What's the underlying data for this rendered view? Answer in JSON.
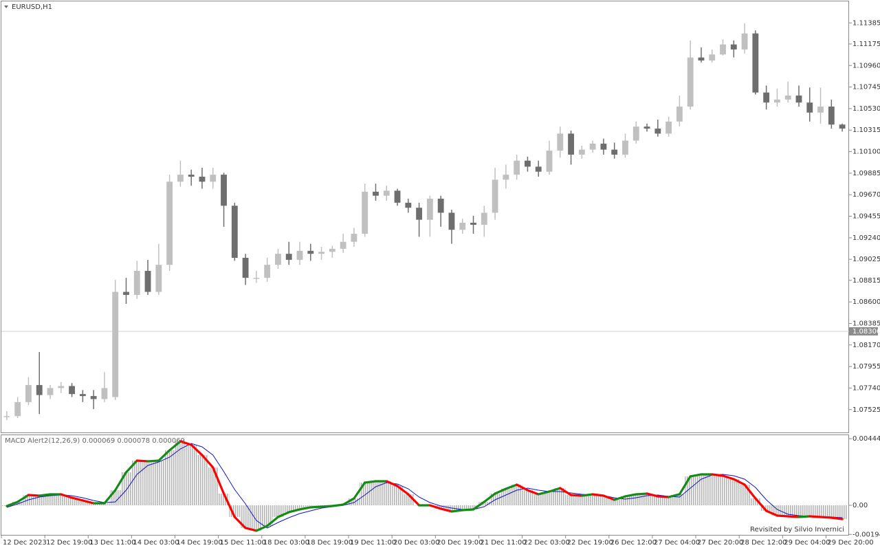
{
  "chart_data": [
    {
      "type": "candlestick",
      "title": "EURUSD,H1",
      "categories": [
        "12 Dec 2023",
        null,
        null,
        null,
        "12 Dec 19:00",
        null,
        null,
        null,
        "13 Dec 11:00",
        null,
        null,
        null,
        "14 Dec 03:00",
        null,
        null,
        null,
        "14 Dec 19:00",
        null,
        null,
        null,
        "15 Dec 11:00",
        null,
        null,
        null,
        "18 Dec 03:00",
        null,
        null,
        null,
        "18 Dec 19:00",
        null,
        null,
        null,
        "19 Dec 11:00",
        null,
        null,
        null,
        "20 Dec 03:00",
        null,
        null,
        null,
        "20 Dec 19:00",
        null,
        null,
        null,
        "21 Dec 11:00",
        null,
        null,
        null,
        "22 Dec 03:00",
        null,
        null,
        null,
        "22 Dec 19:00",
        null,
        null,
        null,
        "26 Dec 12:00",
        null,
        null,
        null,
        "27 Dec 04:00",
        null,
        null,
        null,
        "27 Dec 20:00",
        null,
        null,
        null,
        "28 Dec 12:00",
        null,
        null,
        null,
        "29 Dec 04:00",
        null,
        null,
        null,
        "29 Dec 20:00",
        null
      ],
      "open": [
        1.0746,
        1.0746,
        1.076,
        1.0777,
        1.0767,
        1.0774,
        1.0776,
        1.0768,
        1.0766,
        1.0763,
        1.0765,
        1.087,
        1.0867,
        1.0891,
        1.087,
        1.0897,
        1.098,
        1.0987,
        1.0985,
        1.098,
        1.0987,
        1.0956,
        1.0904,
        1.0884,
        1.0884,
        1.0897,
        1.0908,
        1.0902,
        1.0911,
        1.0908,
        1.091,
        1.0913,
        1.092,
        1.0928,
        1.097,
        1.0966,
        1.0971,
        1.0959,
        1.0954,
        1.0942,
        1.0963,
        1.0949,
        1.0932,
        1.0939,
        1.0937,
        1.0949,
        1.0982,
        1.0987,
        1.1001,
        1.0995,
        1.099,
        1.1011,
        1.1028,
        1.1007,
        1.1012,
        1.1018,
        1.1012,
        1.1007,
        1.1021,
        1.1035,
        1.1033,
        1.1028,
        1.104,
        1.1055,
        1.1104,
        1.1101,
        1.1107,
        1.1117,
        1.1112,
        1.1128,
        1.1069,
        1.1059,
        1.1062,
        1.1066,
        1.1059,
        1.1049,
        1.1055,
        1.1037
      ],
      "high": [
        1.0751,
        1.0765,
        1.0785,
        1.081,
        1.0777,
        1.078,
        1.0779,
        1.0772,
        1.0772,
        1.079,
        1.0882,
        1.0884,
        1.0901,
        1.0902,
        1.0918,
        1.0987,
        1.1001,
        1.0992,
        1.0994,
        1.0994,
        1.0989,
        1.0959,
        1.0908,
        1.0891,
        1.0904,
        1.0913,
        1.092,
        1.092,
        1.0918,
        1.0915,
        1.0916,
        1.0928,
        1.0934,
        1.0978,
        1.0978,
        1.0976,
        1.0973,
        1.0963,
        1.0959,
        1.0966,
        1.0966,
        1.0952,
        1.0943,
        1.0946,
        1.0956,
        1.0994,
        1.0997,
        1.1007,
        1.1005,
        1.1001,
        1.1021,
        1.1035,
        1.1031,
        1.1016,
        1.1021,
        1.1023,
        1.1019,
        1.1028,
        1.104,
        1.1038,
        1.1042,
        1.1045,
        1.1066,
        1.1121,
        1.1114,
        1.1112,
        1.1122,
        1.1121,
        1.1138,
        1.1131,
        1.1076,
        1.1073,
        1.108,
        1.1076,
        1.1074,
        1.1074,
        1.1062,
        1.1038
      ],
      "low": [
        1.0742,
        1.0744,
        1.0757,
        1.0748,
        1.0763,
        1.0769,
        1.0765,
        1.076,
        1.0753,
        1.076,
        1.0762,
        1.0858,
        1.0863,
        1.0867,
        1.0867,
        1.0891,
        1.0975,
        1.0976,
        1.0973,
        1.0973,
        1.0935,
        1.0901,
        1.0877,
        1.0879,
        1.088,
        1.0893,
        1.0897,
        1.0897,
        1.0901,
        1.0902,
        1.0904,
        1.0909,
        1.0915,
        1.0925,
        1.0961,
        1.0961,
        1.0956,
        1.0949,
        1.0925,
        1.0925,
        1.0935,
        1.0918,
        1.0928,
        1.0928,
        1.0925,
        1.0942,
        1.0973,
        1.0982,
        1.099,
        1.0985,
        1.0987,
        1.1004,
        1.0997,
        1.1003,
        1.1009,
        1.1007,
        1.1003,
        1.1004,
        1.1018,
        1.103,
        1.1025,
        1.1025,
        1.1035,
        1.1052,
        1.1099,
        1.1099,
        1.1106,
        1.1104,
        1.1108,
        1.1067,
        1.1052,
        1.1055,
        1.1059,
        1.1055,
        1.104,
        1.1038,
        1.1033,
        1.103
      ],
      "close": [
        1.0746,
        1.076,
        1.0777,
        1.0767,
        1.0774,
        1.0776,
        1.0768,
        1.0766,
        1.0763,
        1.0774,
        1.087,
        1.0867,
        1.0891,
        1.087,
        1.0897,
        1.098,
        1.0987,
        1.0985,
        1.098,
        1.0987,
        1.0956,
        1.0904,
        1.0884,
        1.0884,
        1.0897,
        1.0908,
        1.0902,
        1.0911,
        1.0908,
        1.091,
        1.0913,
        1.092,
        1.0928,
        1.097,
        1.0966,
        1.0971,
        1.0959,
        1.0954,
        1.0942,
        1.0963,
        1.0949,
        1.0932,
        1.0939,
        1.0937,
        1.0949,
        1.0982,
        1.0987,
        1.1001,
        1.0995,
        1.099,
        1.1011,
        1.1028,
        1.1007,
        1.1012,
        1.1018,
        1.1012,
        1.1007,
        1.1021,
        1.1035,
        1.1033,
        1.1028,
        1.104,
        1.1055,
        1.1104,
        1.1101,
        1.1107,
        1.1117,
        1.1112,
        1.1128,
        1.1069,
        1.1059,
        1.1062,
        1.1066,
        1.1059,
        1.1049,
        1.1055,
        1.1037,
        1.1033
      ],
      "up_color": "#c0c0c0",
      "down_color": "#6e6e6e",
      "current_price": 1.08306,
      "ylim": [
        1.0729,
        1.116
      ],
      "yticks": [
        1.11385,
        1.11175,
        {
          "value": 1.1096,
          "label": "1.10960"
        },
        1.10745,
        {
          "value": 1.1053,
          "label": "1.10530"
        },
        1.10315,
        {
          "value": 1.101,
          "label": "1.10100"
        },
        1.09885,
        {
          "value": 1.0967,
          "label": "1.09670"
        },
        1.09455,
        {
          "value": 1.0924,
          "label": "1.09240"
        },
        1.09025,
        1.08815,
        {
          "value": 1.086,
          "label": "1.08600"
        },
        1.08385,
        {
          "value": 1.0817,
          "label": "1.08170"
        },
        1.07955,
        {
          "value": 1.0774,
          "label": "1.07740"
        },
        1.07525
      ]
    },
    {
      "type": "macd",
      "title": "MACD Alert2(12,26,9) 0.000069 0.000078 0.000069",
      "annotation": "Revisited by Silvio Invernici",
      "macd_values": [
        -4.6e-05,
        0.000229,
        0.000688,
        0.000642,
        0.000734,
        0.000734,
        0.000505,
        0.000321,
        0.000138,
        0.000138,
        0.00101,
        0.002203,
        0.002983,
        0.002938,
        0.002983,
        0.003672,
        0.004269,
        0.004039,
        0.003351,
        0.002524,
        0.00078,
        -0.00078,
        -0.001514,
        -0.001698,
        -0.001377,
        -0.00078,
        -0.000459,
        -0.000275,
        -0.000138,
        -9.2e-05,
        -4.6e-05,
        4.6e-05,
        0.000459,
        0.001514,
        0.001606,
        0.001606,
        0.001285,
        0.000734,
        0,
        0,
        -0.000229,
        -0.000413,
        -0.000321,
        -0.000275,
        0.000229,
        0.00078,
        0.001101,
        0.001377,
        0.00101,
        0.000734,
        0.000918,
        0.001147,
        0.000688,
        0.000642,
        0.000734,
        0.000642,
        0.000367,
        0.000597,
        0.000734,
        0.00078,
        0.000597,
        0.000551,
        0.000734,
        0.001928,
        0.002065,
        0.002065,
        0.001973,
        0.001744,
        0.001377,
        0.000459,
        -0.000367,
        -0.000688,
        -0.000734,
        -0.00078,
        -0.000734,
        -0.00078,
        -0.000826,
        -0.000918
      ],
      "signal_values": [
        -0.000138,
        9.2e-05,
        0.000367,
        0.000551,
        0.000642,
        0.000688,
        0.000642,
        0.000505,
        0.000321,
        0.000184,
        0.000229,
        0.00101,
        0.002065,
        0.002662,
        0.002892,
        0.003213,
        0.003764,
        0.004131,
        0.003902,
        0.003351,
        0.002249,
        0.001056,
        9.2e-05,
        -0.00101,
        -0.001514,
        -0.001147,
        -0.000826,
        -0.000551,
        -0.000367,
        -0.000184,
        -9.2e-05,
        0,
        0.000184,
        0.000688,
        0.001239,
        0.001514,
        0.001423,
        0.001101,
        0.000551,
        0.000184,
        -4.6e-05,
        -0.000184,
        -0.000275,
        -0.000275,
        -9.2e-05,
        0.000367,
        0.000688,
        0.00101,
        0.001147,
        0.00101,
        0.000918,
        0.000918,
        0.000826,
        0.000734,
        0.000688,
        0.000642,
        0.000505,
        0.000413,
        0.000505,
        0.000642,
        0.000688,
        0.000597,
        0.000551,
        0.001147,
        0.001744,
        0.002019,
        0.002065,
        0.001973,
        0.001744,
        0.001193,
        0.000367,
        -0.000275,
        -0.000597,
        -0.000688,
        -0.000734,
        -0.000734,
        -0.00078,
        -0.000826
      ],
      "histogram_color": "#b4b4b4",
      "rising_color": "#158a15",
      "falling_color": "#ff0000",
      "signal_color": "#1010d0",
      "ylim": [
        -0.00202,
        0.00468
      ],
      "yticks": [
        0.004448,
        {
          "value": 0,
          "label": "0.00"
        },
        -0.00194
      ]
    }
  ]
}
